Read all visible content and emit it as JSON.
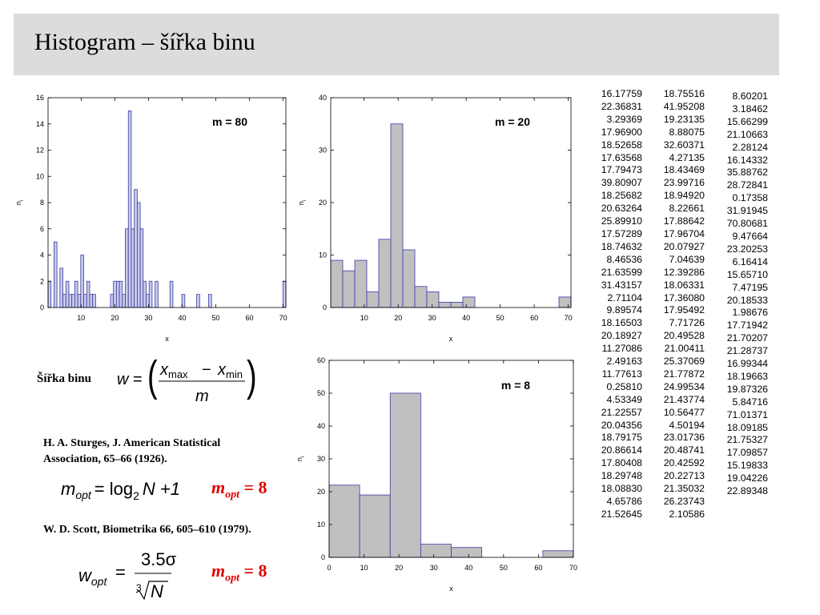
{
  "header": {
    "title": "Histogram – šířka binu"
  },
  "chart_data": [
    {
      "type": "bar",
      "annotation": "m = 80",
      "xlabel": "x",
      "ylabel": "n_i",
      "xlim": [
        0.17358,
        70.80681
      ],
      "ylim": [
        0,
        16
      ],
      "xticks": [
        "10",
        "20",
        "30",
        "40",
        "50",
        "60",
        "70"
      ],
      "yticks": [
        "0",
        "2",
        "4",
        "6",
        "8",
        "10",
        "12",
        "14",
        "16"
      ],
      "bin_count": 80,
      "values": [
        2,
        0,
        5,
        0,
        3,
        1,
        2,
        1,
        1,
        2,
        1,
        4,
        1,
        2,
        1,
        1,
        0,
        0,
        0,
        0,
        0,
        1,
        2,
        2,
        2,
        1,
        6,
        15,
        6,
        9,
        8,
        6,
        2,
        1,
        2,
        0,
        2,
        0,
        0,
        0,
        0,
        2,
        0,
        0,
        0,
        1,
        0,
        0,
        0,
        0,
        1,
        0,
        0,
        0,
        1,
        0,
        0,
        0,
        0,
        0,
        0,
        0,
        0,
        0,
        0,
        0,
        0,
        0,
        0,
        0,
        0,
        0,
        0,
        0,
        0,
        0,
        0,
        0,
        0,
        2
      ]
    },
    {
      "type": "bar",
      "annotation": "m = 20",
      "xlabel": "x",
      "ylabel": "n_i",
      "xlim": [
        0.17358,
        70.80681
      ],
      "ylim": [
        0,
        40
      ],
      "xticks": [
        "10",
        "20",
        "30",
        "40",
        "50",
        "60",
        "70"
      ],
      "yticks": [
        "0",
        "10",
        "20",
        "30",
        "40"
      ],
      "bin_count": 20,
      "values": [
        9,
        7,
        9,
        3,
        13,
        35,
        11,
        4,
        3,
        1,
        1,
        2,
        0,
        0,
        0,
        0,
        0,
        0,
        0,
        2
      ]
    },
    {
      "type": "bar",
      "annotation": "m = 8",
      "xlabel": "x",
      "ylabel": "n_i",
      "xlim": [
        0,
        70
      ],
      "ylim": [
        0,
        60
      ],
      "xticks": [
        "0",
        "10",
        "20",
        "30",
        "40",
        "50",
        "60",
        "70"
      ],
      "yticks": [
        "0",
        "10",
        "20",
        "30",
        "40",
        "50",
        "60"
      ],
      "bin_count": 8,
      "values": [
        22,
        19,
        50,
        4,
        3,
        0,
        0,
        2
      ]
    }
  ],
  "data_columns": [
    [
      "16.17759",
      "22.36831",
      "3.29369",
      "17.96900",
      "18.52658",
      "17.63568",
      "17.79473",
      "39.80907",
      "18.25682",
      "20.63264",
      "25.89910",
      "17.57289",
      "18.74632",
      "8.46536",
      "21.63599",
      "31.43157",
      "2.71104",
      "9.89574",
      "18.16503",
      "20.18927",
      "11.27086",
      "2.49163",
      "11.77613",
      "0.25810",
      "4.53349",
      "21.22557",
      "20.04356",
      "18.79175",
      "20.86614",
      "17.80408",
      "18.29748",
      "18.08830",
      "4.65786",
      "21.52645"
    ],
    [
      "18.75516",
      "41.95208",
      "19.23135",
      "8.88075",
      "32.60371",
      "4.27135",
      "18.43469",
      "23.99716",
      "18.94920",
      "8.22661",
      "17.88642",
      "17.96704",
      "20.07927",
      "7.04639",
      "12.39286",
      "18.06331",
      "17.36080",
      "17.95492",
      "7.71726",
      "20.49528",
      "21.00411",
      "25.37069",
      "21.77872",
      "24.99534",
      "21.43774",
      "10.56477",
      "4.50194",
      "23.01736",
      "20.48741",
      "20.42592",
      "20.22713",
      "21.35032",
      "26.23743",
      "2.10586"
    ],
    [
      "8.60201",
      "3.18462",
      "15.66299",
      "21.10663",
      "2.28124",
      "16.14332",
      "35.88762",
      "28.72841",
      "0.17358",
      "31.91945",
      "70.80681",
      "9.47664",
      "23.20253",
      "6.16414",
      "15.65710",
      "7.47195",
      "20.18533",
      "1.98676",
      "17.71942",
      "21.70207",
      "21.28737",
      "16.99344",
      "18.19663",
      "19.87326",
      "5.84716",
      "71.01371",
      "18.09185",
      "21.75327",
      "17.09857",
      "15.19833",
      "19.04226",
      "22.89348"
    ]
  ],
  "bin_width": {
    "label": "Šířka binu",
    "w": "w",
    "x": "x",
    "sub_max": "max",
    "sub_min": "min",
    "minus": "−",
    "m": "m",
    "eq": "=",
    "lparen": "(",
    "rparen": ")"
  },
  "sturges": {
    "ref": "H. A. Sturges, J. American Statistical Association, 65–66 (1926).",
    "m": "m",
    "opt": "opt",
    "rhs": "= log",
    "log_base": "2",
    "rhs_tail": "N +1",
    "result_m": "m",
    "result_opt": "opt",
    "result_val": " = 8"
  },
  "scott": {
    "ref": "W. D. Scott,  Biometrika 66, 605–610 (1979).",
    "w": "w",
    "opt": "opt",
    "eq": "=",
    "numerator": "3.5σ",
    "root_index": "3",
    "root_radicand": "N",
    "result_m": "m",
    "result_opt": "opt",
    "result_val": " = 8"
  },
  "colors": {
    "bar_fill_blue": "#c8cbe6",
    "bar_fill_gray": "#c0c0c0",
    "bar_stroke": "#3a3aa8",
    "accent_red": "#e00000"
  }
}
